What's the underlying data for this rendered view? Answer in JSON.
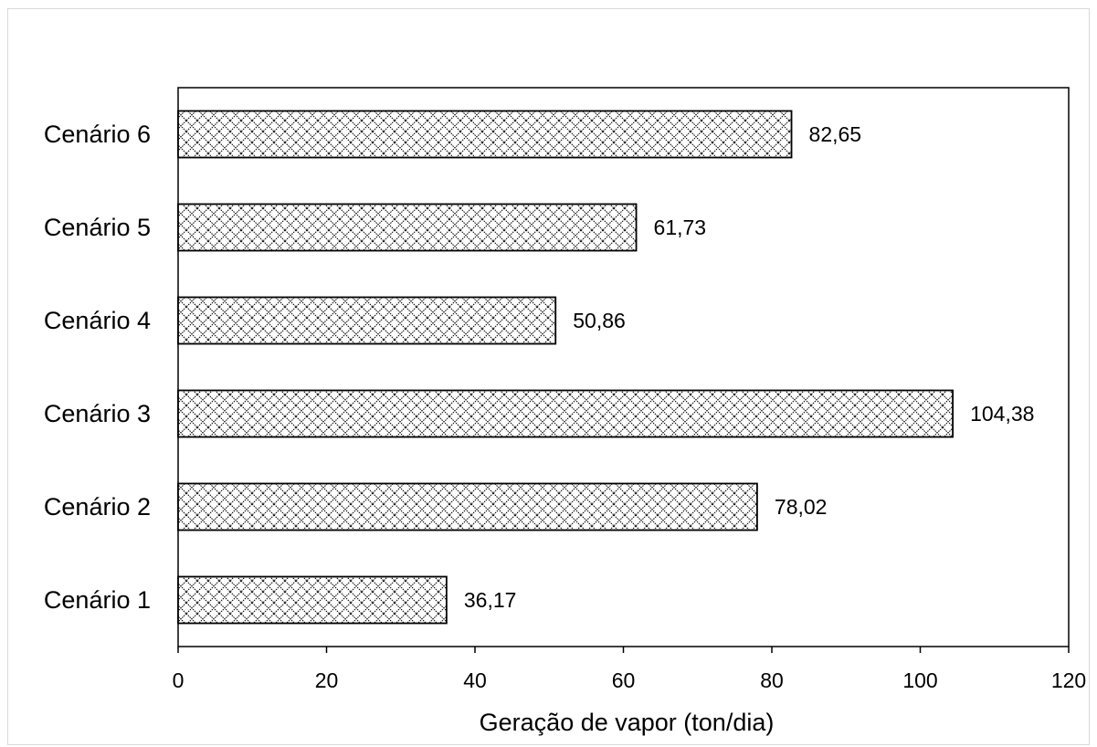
{
  "chart_data": {
    "type": "bar",
    "orientation": "horizontal",
    "categories": [
      "Cenário 1",
      "Cenário 2",
      "Cenário 3",
      "Cenário 4",
      "Cenário 5",
      "Cenário 6"
    ],
    "values": [
      36.17,
      78.02,
      104.38,
      50.86,
      61.73,
      82.65
    ],
    "data_labels": [
      "36,17",
      "78,02",
      "104,38",
      "50,86",
      "61,73",
      "82,65"
    ],
    "title": "",
    "xlabel": "Geração de vapor (ton/dia)",
    "ylabel": "",
    "xlim": [
      0,
      120
    ],
    "x_ticks": [
      0,
      20,
      40,
      60,
      80,
      100,
      120
    ],
    "x_tick_labels": [
      "0",
      "20",
      "40",
      "60",
      "80",
      "100",
      "120"
    ],
    "grid": false,
    "legend": "none",
    "bar_fill": "crosshatch",
    "colors": {
      "bar_pattern": "#000000",
      "bar_background": "#ffffff",
      "axis": "#000000"
    }
  }
}
